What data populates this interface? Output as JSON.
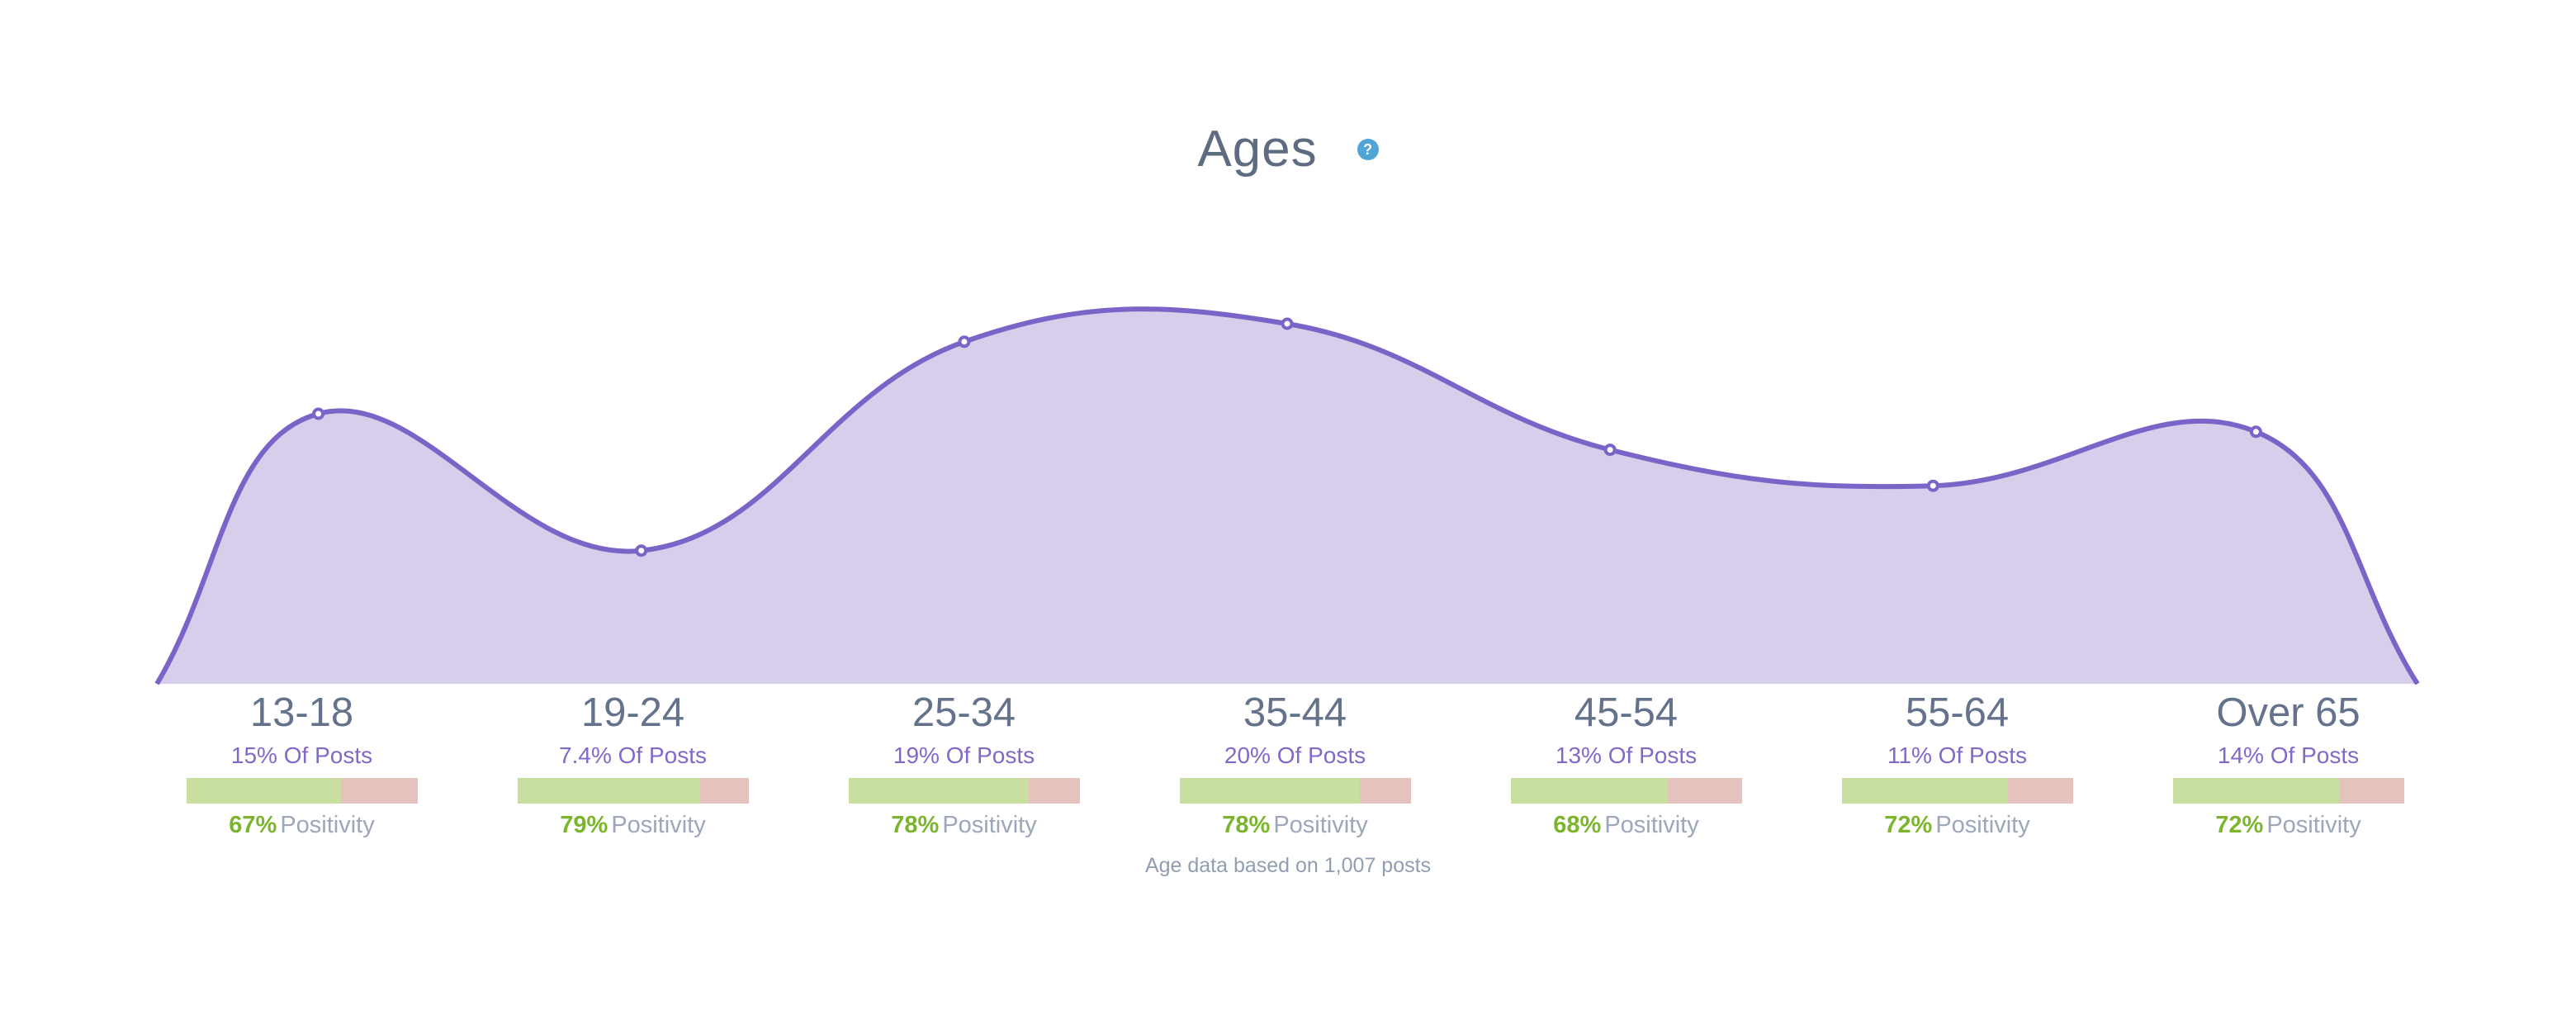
{
  "title": {
    "text": "Ages",
    "help_glyph": "?"
  },
  "footer": "Age data based on 1,007 posts",
  "colors": {
    "line": "#7B64C7",
    "fill": "#D6CEEA",
    "marker_fill": "#FFFFFF",
    "title_text": "#5D6C81",
    "help_bg": "#4FA5D5",
    "age_label": "#64738B",
    "of_posts_text": "#8268C9",
    "positivity_value": "#7CB52D",
    "positivity_word": "#9CA7B9",
    "bar_positive": "#C8DFA0",
    "bar_negative": "#E4C2BE",
    "footer_text": "#919EB0"
  },
  "chart_data": {
    "type": "area",
    "title": "Ages",
    "categories": [
      "13-18",
      "19-24",
      "25-34",
      "35-44",
      "45-54",
      "55-64",
      "Over 65"
    ],
    "series": [
      {
        "name": "Of Posts (%)",
        "values": [
          15,
          7.4,
          19,
          20,
          13,
          11,
          14
        ]
      },
      {
        "name": "Positivity (%)",
        "values": [
          67,
          79,
          78,
          78,
          68,
          72,
          72
        ]
      }
    ],
    "ylim": [
      0,
      20
    ],
    "grid": false,
    "legend": false,
    "smooth": true,
    "point_markers": true,
    "annotation": "Age data based on 1,007 posts"
  },
  "groups": [
    {
      "age": "13-18",
      "of_posts": "15% Of Posts",
      "positivity": 67,
      "positivity_pct": "67%",
      "positivity_word": "Positivity"
    },
    {
      "age": "19-24",
      "of_posts": "7.4% Of Posts",
      "positivity": 79,
      "positivity_pct": "79%",
      "positivity_word": "Positivity"
    },
    {
      "age": "25-34",
      "of_posts": "19% Of Posts",
      "positivity": 78,
      "positivity_pct": "78%",
      "positivity_word": "Positivity"
    },
    {
      "age": "35-44",
      "of_posts": "20% Of Posts",
      "positivity": 78,
      "positivity_pct": "78%",
      "positivity_word": "Positivity"
    },
    {
      "age": "45-54",
      "of_posts": "13% Of Posts",
      "positivity": 68,
      "positivity_pct": "68%",
      "positivity_word": "Positivity"
    },
    {
      "age": "55-64",
      "of_posts": "11% Of Posts",
      "positivity": 72,
      "positivity_pct": "72%",
      "positivity_word": "Positivity"
    },
    {
      "age": "Over 65",
      "of_posts": "14% Of Posts",
      "positivity": 72,
      "positivity_pct": "72%",
      "positivity_word": "Positivity"
    }
  ]
}
